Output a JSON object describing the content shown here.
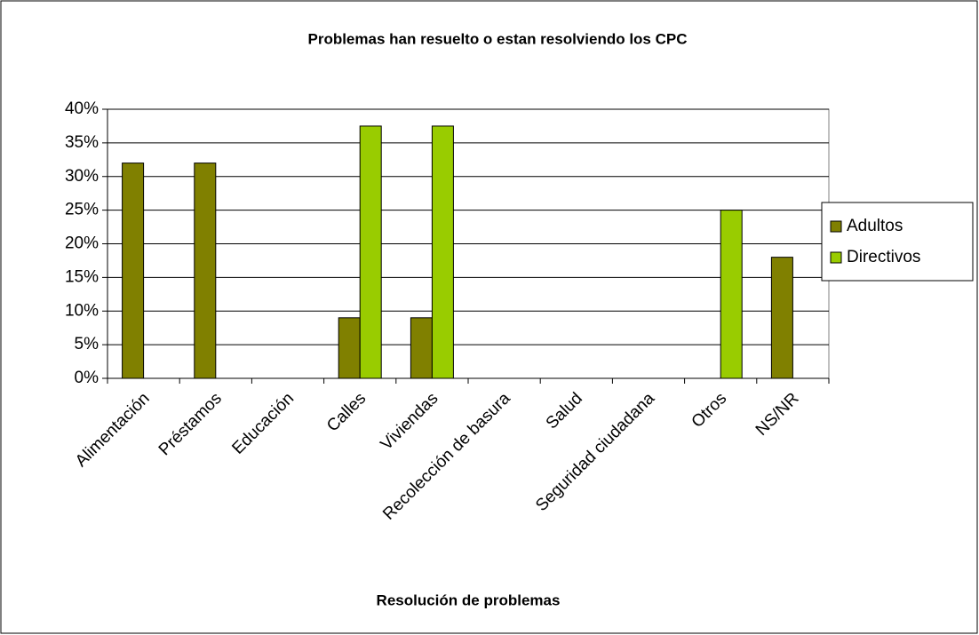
{
  "chart_data": {
    "type": "bar",
    "title": "Problemas han resuelto o estan resolviendo los CPC",
    "x_label": "Resolución de problemas",
    "categories": [
      "Alimentación",
      "Préstamos",
      "Educación",
      "Calles",
      "Viviendas",
      "Recolección de basura",
      "Salud",
      "Seguridad ciudadana",
      "Otros",
      "NS/NR"
    ],
    "series": [
      {
        "name": "Adultos",
        "color": "#808000",
        "values": [
          32,
          32,
          0,
          9,
          9,
          0,
          0,
          0,
          0,
          18
        ]
      },
      {
        "name": "Directivos",
        "color": "#99cc00",
        "values": [
          0,
          0,
          0,
          37.5,
          37.5,
          0,
          0,
          0,
          25,
          0
        ]
      }
    ],
    "ylim": [
      0,
      40
    ],
    "yticks": [
      {
        "value": 0,
        "label": "0%"
      },
      {
        "value": 5,
        "label": "5%"
      },
      {
        "value": 10,
        "label": "10%"
      },
      {
        "value": 15,
        "label": "15%"
      },
      {
        "value": 20,
        "label": "20%"
      },
      {
        "value": 25,
        "label": "25%"
      },
      {
        "value": 30,
        "label": "30%"
      },
      {
        "value": 35,
        "label": "35%"
      },
      {
        "value": 40,
        "label": "40%"
      }
    ],
    "grid": true,
    "legend": "right"
  }
}
